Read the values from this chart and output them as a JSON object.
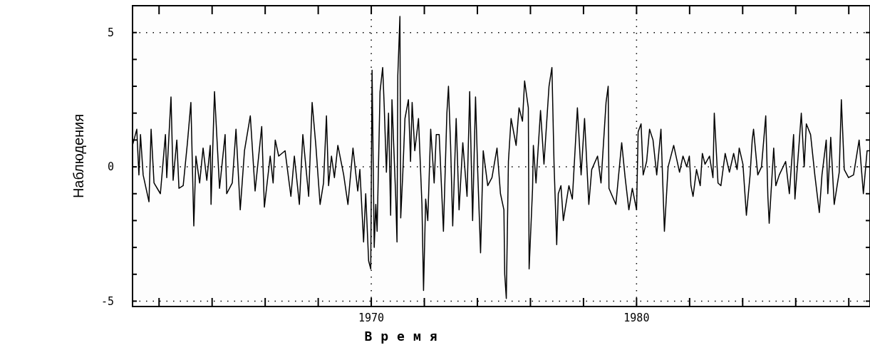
{
  "chart_data": {
    "type": "line",
    "xlabel": "Время",
    "ylabel": "Наблюдения",
    "xlim": [
      1961,
      1988.8
    ],
    "ylim": [
      -5.2,
      6
    ],
    "xticks": [
      {
        "value": 1962,
        "label": null
      },
      {
        "value": 1964,
        "label": null
      },
      {
        "value": 1966,
        "label": null
      },
      {
        "value": 1968,
        "label": null
      },
      1970,
      {
        "value": 1972,
        "label": null
      },
      {
        "value": 1974,
        "label": null
      },
      {
        "value": 1976,
        "label": null
      },
      {
        "value": 1978,
        "label": null
      },
      1980,
      {
        "value": 1982,
        "label": null
      },
      {
        "value": 1984,
        "label": null
      },
      {
        "value": 1986,
        "label": null
      },
      {
        "value": 1988,
        "label": null
      }
    ],
    "yticks": [
      -5,
      {
        "value": -4,
        "label": null
      },
      {
        "value": -3,
        "label": null
      },
      {
        "value": -2,
        "label": null
      },
      {
        "value": -1,
        "label": null
      },
      0,
      {
        "value": 1,
        "label": null
      },
      {
        "value": 2,
        "label": null
      },
      {
        "value": 3,
        "label": null
      },
      {
        "value": 4,
        "label": null
      },
      5
    ],
    "grid": true,
    "marker": "none",
    "line_style": "solid",
    "series": [
      {
        "color": "#000000",
        "x": [
          1961.0,
          1961.16,
          1961.24,
          1961.3,
          1961.4,
          1961.62,
          1961.7,
          1961.81,
          1962.05,
          1962.24,
          1962.29,
          1962.45,
          1962.53,
          1962.67,
          1962.75,
          1962.91,
          1963.07,
          1963.2,
          1963.31,
          1963.39,
          1963.53,
          1963.66,
          1963.8,
          1963.93,
          1963.96,
          1964.09,
          1964.28,
          1964.49,
          1964.55,
          1964.76,
          1964.9,
          1965.06,
          1965.22,
          1965.44,
          1965.62,
          1965.87,
          1965.97,
          1966.19,
          1966.3,
          1966.38,
          1966.51,
          1966.75,
          1966.97,
          1967.1,
          1967.29,
          1967.42,
          1967.64,
          1967.77,
          1967.91,
          1968.07,
          1968.2,
          1968.31,
          1968.39,
          1968.5,
          1968.61,
          1968.74,
          1968.96,
          1969.12,
          1969.31,
          1969.41,
          1969.49,
          1969.57,
          1969.71,
          1969.79,
          1969.9,
          1969.98,
          1970.03,
          1970.11,
          1970.17,
          1970.22,
          1970.33,
          1970.43,
          1970.49,
          1970.57,
          1970.65,
          1970.73,
          1970.78,
          1970.92,
          1970.97,
          1971.0,
          1971.08,
          1971.11,
          1971.19,
          1971.27,
          1971.4,
          1971.48,
          1971.54,
          1971.64,
          1971.78,
          1971.91,
          1971.97,
          1972.05,
          1972.13,
          1972.24,
          1972.32,
          1972.37,
          1972.45,
          1972.56,
          1972.72,
          1972.85,
          1972.91,
          1972.99,
          1973.07,
          1973.2,
          1973.31,
          1973.45,
          1973.61,
          1973.71,
          1973.82,
          1973.93,
          1974.01,
          1974.12,
          1974.22,
          1974.39,
          1974.55,
          1974.74,
          1974.87,
          1975.0,
          1975.03,
          1975.09,
          1975.17,
          1975.27,
          1975.46,
          1975.57,
          1975.7,
          1975.78,
          1975.92,
          1975.95,
          1976.08,
          1976.11,
          1976.21,
          1976.38,
          1976.51,
          1976.7,
          1976.81,
          1976.89,
          1976.99,
          1977.05,
          1977.15,
          1977.24,
          1977.45,
          1977.58,
          1977.77,
          1977.91,
          1978.04,
          1978.2,
          1978.31,
          1978.53,
          1978.66,
          1978.85,
          1978.93,
          1978.96,
          1979.22,
          1979.44,
          1979.57,
          1979.71,
          1979.84,
          1980.0,
          1980.06,
          1980.17,
          1980.25,
          1980.38,
          1980.49,
          1980.62,
          1980.76,
          1980.92,
          1981.05,
          1981.19,
          1981.4,
          1981.62,
          1981.75,
          1981.89,
          1981.99,
          1982.05,
          1982.13,
          1982.26,
          1982.4,
          1982.48,
          1982.58,
          1982.75,
          1982.88,
          1982.93,
          1983.07,
          1983.18,
          1983.34,
          1983.5,
          1983.66,
          1983.79,
          1983.87,
          1984.01,
          1984.14,
          1984.28,
          1984.36,
          1984.41,
          1984.57,
          1984.71,
          1984.87,
          1984.95,
          1985.0,
          1985.17,
          1985.25,
          1985.38,
          1985.62,
          1985.76,
          1985.92,
          1985.97,
          1986.13,
          1986.21,
          1986.32,
          1986.4,
          1986.56,
          1986.72,
          1986.89,
          1986.99,
          1987.15,
          1987.21,
          1987.32,
          1987.45,
          1987.64,
          1987.72,
          1987.83,
          1987.99,
          1988.18,
          1988.39,
          1988.55,
          1988.69,
          1988.79
        ],
        "values": [
          0.8,
          1.4,
          -0.3,
          1.2,
          -0.3,
          -1.3,
          1.4,
          -0.6,
          -1.0,
          1.2,
          -0.4,
          2.6,
          -0.5,
          1.0,
          -0.8,
          -0.7,
          0.9,
          2.4,
          -2.2,
          0.4,
          -0.6,
          0.7,
          -0.5,
          0.8,
          -1.4,
          2.8,
          -0.8,
          1.2,
          -1.0,
          -0.6,
          1.4,
          -1.6,
          0.6,
          1.9,
          -0.9,
          1.5,
          -1.5,
          0.4,
          -0.6,
          1.0,
          0.4,
          0.6,
          -1.1,
          0.4,
          -1.4,
          1.2,
          -1.1,
          2.4,
          0.8,
          -1.4,
          -0.6,
          1.9,
          -0.7,
          0.4,
          -0.4,
          0.8,
          -0.3,
          -1.4,
          0.7,
          -0.2,
          -0.9,
          -0.1,
          -2.8,
          -1.0,
          -3.5,
          -3.8,
          3.6,
          -3.0,
          -1.4,
          -2.4,
          2.8,
          3.7,
          2.2,
          -0.2,
          2.0,
          -1.8,
          2.5,
          -1.1,
          -2.8,
          3.4,
          5.6,
          -1.9,
          -0.2,
          1.8,
          2.5,
          0.2,
          2.4,
          0.6,
          1.8,
          -1.4,
          -4.6,
          -1.2,
          -2.0,
          1.4,
          0.2,
          -0.6,
          1.2,
          1.2,
          -2.4,
          2.0,
          3.0,
          0.8,
          -2.2,
          1.8,
          -1.6,
          0.9,
          -1.1,
          2.8,
          -2.0,
          2.6,
          -0.1,
          -3.2,
          0.6,
          -0.7,
          -0.4,
          0.7,
          -1.0,
          -1.6,
          -4.0,
          -4.9,
          0.2,
          1.8,
          0.8,
          2.2,
          1.7,
          3.2,
          2.2,
          -3.8,
          -0.8,
          0.8,
          -0.6,
          2.1,
          0.1,
          3.0,
          3.7,
          0.1,
          -2.9,
          -1.0,
          -0.7,
          -2.0,
          -0.7,
          -1.2,
          2.2,
          -0.3,
          1.8,
          -1.4,
          -0.1,
          0.4,
          -0.6,
          2.4,
          3.0,
          -0.8,
          -1.4,
          0.9,
          -0.4,
          -1.6,
          -0.8,
          -1.6,
          1.3,
          1.6,
          -0.3,
          0.2,
          1.4,
          1.0,
          -0.3,
          1.4,
          -2.4,
          0.0,
          0.8,
          -0.2,
          0.4,
          0.0,
          0.4,
          -0.7,
          -1.1,
          -0.1,
          -0.7,
          0.5,
          0.1,
          0.4,
          -0.4,
          2.0,
          -0.6,
          -0.7,
          0.5,
          -0.2,
          0.5,
          -0.1,
          0.7,
          0.1,
          -1.8,
          -0.3,
          1.0,
          1.4,
          -0.3,
          0.0,
          1.9,
          -1.1,
          -2.1,
          0.7,
          -0.7,
          -0.3,
          0.2,
          -1.0,
          1.2,
          -1.2,
          0.9,
          2.0,
          0.0,
          1.6,
          1.2,
          -0.3,
          -1.7,
          -0.3,
          1.0,
          -1.0,
          1.1,
          -1.4,
          -0.2,
          2.5,
          -0.1,
          -0.4,
          -0.3,
          1.0,
          -1.0,
          0.6,
          0.6
        ]
      }
    ]
  }
}
